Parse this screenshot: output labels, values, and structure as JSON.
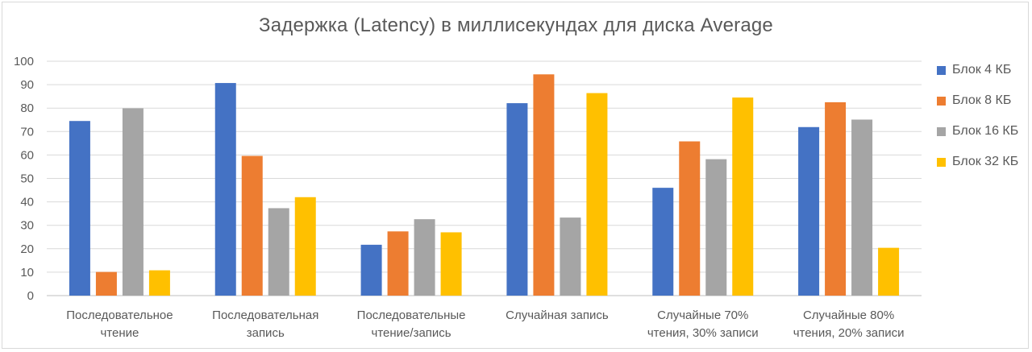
{
  "chart_data": {
    "type": "bar",
    "title": "Задержка (Latency) в миллисекундах для диска Average",
    "xlabel": "",
    "ylabel": "",
    "ylim": [
      0,
      100
    ],
    "yticks": [
      0,
      10,
      20,
      30,
      40,
      50,
      60,
      70,
      80,
      90,
      100
    ],
    "grid": true,
    "legend_position": "right",
    "categories": [
      [
        "Последовательное",
        "чтение"
      ],
      [
        "Последовательная",
        "запись"
      ],
      [
        "Последовательные",
        "чтение/запись"
      ],
      [
        "Случайная запись"
      ],
      [
        "Случайные 70%",
        "чтения, 30% записи"
      ],
      [
        "Случайные 80%",
        "чтения, 20% записи"
      ]
    ],
    "series": [
      {
        "name": "Блок 4 КБ",
        "color": "#4472c4",
        "values": [
          74.5,
          90.7,
          21.7,
          82.1,
          46.0,
          71.9
        ]
      },
      {
        "name": "Блок 8 КБ",
        "color": "#ed7d31",
        "values": [
          10.1,
          59.6,
          27.4,
          94.4,
          65.8,
          82.5
        ]
      },
      {
        "name": "Блок 16 КБ",
        "color": "#a5a5a5",
        "values": [
          79.9,
          37.3,
          32.6,
          33.3,
          58.2,
          75.1
        ]
      },
      {
        "name": "Блок 32 КБ",
        "color": "#ffc000",
        "values": [
          10.8,
          42.0,
          27.0,
          86.4,
          84.5,
          20.4
        ]
      }
    ]
  }
}
